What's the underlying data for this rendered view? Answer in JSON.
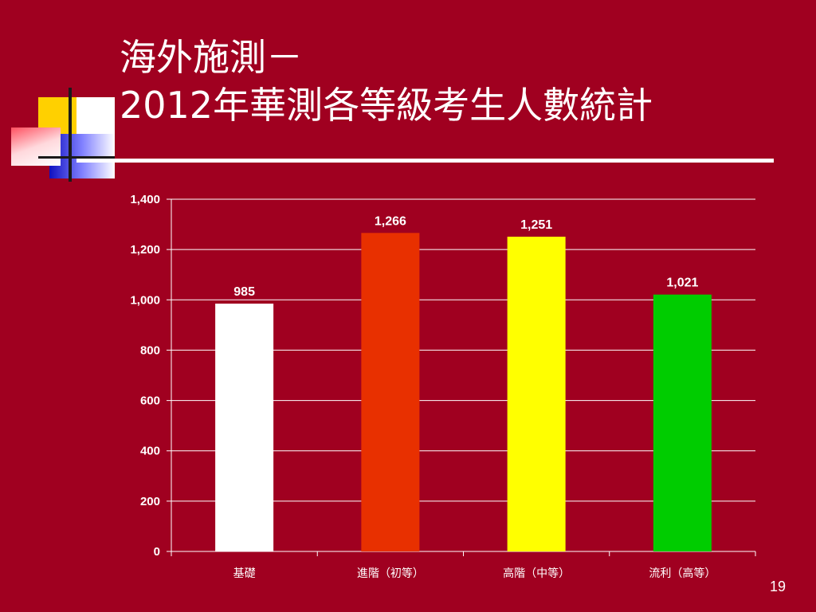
{
  "slide": {
    "title_line1": "海外施測－",
    "title_line2": "2012年華測各等級考生人數統計",
    "page_number": "19"
  },
  "colors": {
    "background": "#a00020",
    "text": "#ffffff",
    "gridline": "#ffffff"
  },
  "chart_data": {
    "type": "bar",
    "title": "",
    "xlabel": "",
    "ylabel": "",
    "categories": [
      "基礎",
      "進階（初等）",
      "高階（中等）",
      "流利（高等）"
    ],
    "values": [
      985,
      1266,
      1251,
      1021
    ],
    "value_labels": [
      "985",
      "1,266",
      "1,251",
      "1,021"
    ],
    "bar_colors": [
      "#ffffff",
      "#e83000",
      "#ffff00",
      "#00cc00"
    ],
    "ylim": [
      0,
      1400
    ],
    "yticks": [
      0,
      200,
      400,
      600,
      800,
      1000,
      1200,
      1400
    ],
    "ytick_labels": [
      "0",
      "200",
      "400",
      "600",
      "800",
      "1,000",
      "1,200",
      "1,400"
    ],
    "grid": true,
    "legend": "none"
  }
}
